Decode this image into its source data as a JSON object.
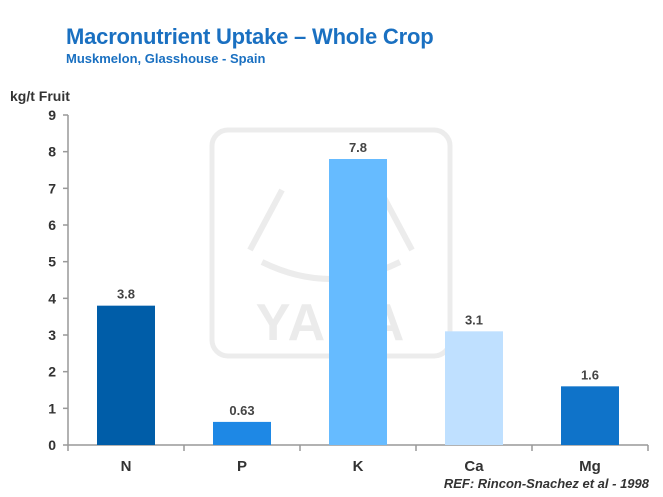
{
  "header": {
    "title": "Macronutrient Uptake – Whole Crop",
    "subtitle": "Muskmelon, Glasshouse  - Spain"
  },
  "watermark": {
    "text": "YARA"
  },
  "footer": {
    "reference": "REF: Rincon-Snachez  et al - 1998"
  },
  "chart_data": {
    "type": "bar",
    "ylabel": "kg/t Fruit",
    "xlabel": "",
    "ylim": [
      0,
      9
    ],
    "yticks": [
      0,
      1,
      2,
      3,
      4,
      5,
      6,
      7,
      8,
      9
    ],
    "grid": false,
    "categories": [
      "N",
      "P",
      "K",
      "Ca",
      "Mg"
    ],
    "values": [
      3.8,
      0.63,
      7.8,
      3.1,
      1.6
    ],
    "value_labels": [
      "3.8",
      "0.63",
      "7.8",
      "3.1",
      "1.6"
    ],
    "colors": [
      "#005da8",
      "#1e88e5",
      "#66bbff",
      "#bfe0ff",
      "#0f73c9"
    ]
  }
}
